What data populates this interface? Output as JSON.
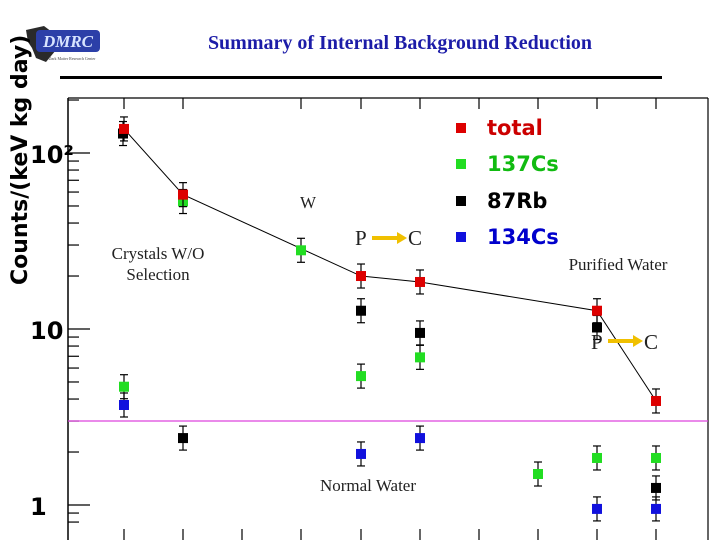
{
  "slide": {
    "title": "Summary of Internal Background Reduction",
    "logo_text": "DMRC",
    "logo_subtitle": "Dark Matter Research Center"
  },
  "colors": {
    "total": "#dd0000",
    "cs137": "#22dd22",
    "rb87": "#000000",
    "cs134": "#1111dd",
    "legend_total": "#cc0000",
    "legend_cs137": "#11bb11",
    "legend_rb87": "#000000",
    "legend_cs134": "#0000cc",
    "reference_line": "#dd44dd",
    "title": "#1c1ca8"
  },
  "chart_data": {
    "type": "scatter",
    "ylabel": "Counts/(keV kg day)",
    "yscale": "log",
    "ylim": [
      0.8,
      270
    ],
    "ytick_labels": [
      "1",
      "10",
      "10²"
    ],
    "ytick_values": [
      1,
      10,
      100
    ],
    "reference_line_y": 3.0,
    "series": [
      {
        "name": "total",
        "color": "#dd0000",
        "connected": true,
        "points": [
          {
            "x": 1,
            "y": 137
          },
          {
            "x": 2,
            "y": 58
          },
          {
            "x": 4,
            "y": 20
          },
          {
            "x": 5,
            "y": 18.5
          },
          {
            "x": 9,
            "y": 12.7
          },
          {
            "x": 10,
            "y": 3.9
          }
        ]
      },
      {
        "name": "137Cs",
        "color": "#22dd22",
        "connected": false,
        "points": [
          {
            "x": 1,
            "y": 4.7
          },
          {
            "x": 2,
            "y": 53
          },
          {
            "x": 3,
            "y": 28
          },
          {
            "x": 4,
            "y": 5.4
          },
          {
            "x": 5,
            "y": 6.9
          },
          {
            "x": 8,
            "y": 1.5
          },
          {
            "x": 9,
            "y": 1.85
          },
          {
            "x": 10,
            "y": 1.85
          }
        ]
      },
      {
        "name": "87Rb",
        "color": "#000000",
        "connected": false,
        "points": [
          {
            "x": 1,
            "y": 129
          },
          {
            "x": 2,
            "y": 2.4
          },
          {
            "x": 4,
            "y": 12.7
          },
          {
            "x": 5,
            "y": 9.5
          },
          {
            "x": 9,
            "y": 10.2
          },
          {
            "x": 10,
            "y": 1.25
          }
        ]
      },
      {
        "name": "134Cs",
        "color": "#1111dd",
        "connected": false,
        "points": [
          {
            "x": 1,
            "y": 3.7
          },
          {
            "x": 4,
            "y": 1.95
          },
          {
            "x": 5,
            "y": 2.4
          },
          {
            "x": 9,
            "y": 0.95
          },
          {
            "x": 10,
            "y": 0.95
          }
        ]
      }
    ],
    "legend": {
      "placement": "top-right",
      "entries": [
        "total",
        "137Cs",
        "87Rb",
        "134Cs"
      ]
    },
    "annotations": {
      "crystals": "Crystals W/O\nSelection",
      "crystals_line1": "Crystals W/O",
      "crystals_line2": "Selection",
      "w": "W",
      "p1": "P",
      "c1": "C",
      "purified": "Purified Water",
      "p2": "P",
      "c2": "C",
      "normal": "Normal Water"
    }
  }
}
